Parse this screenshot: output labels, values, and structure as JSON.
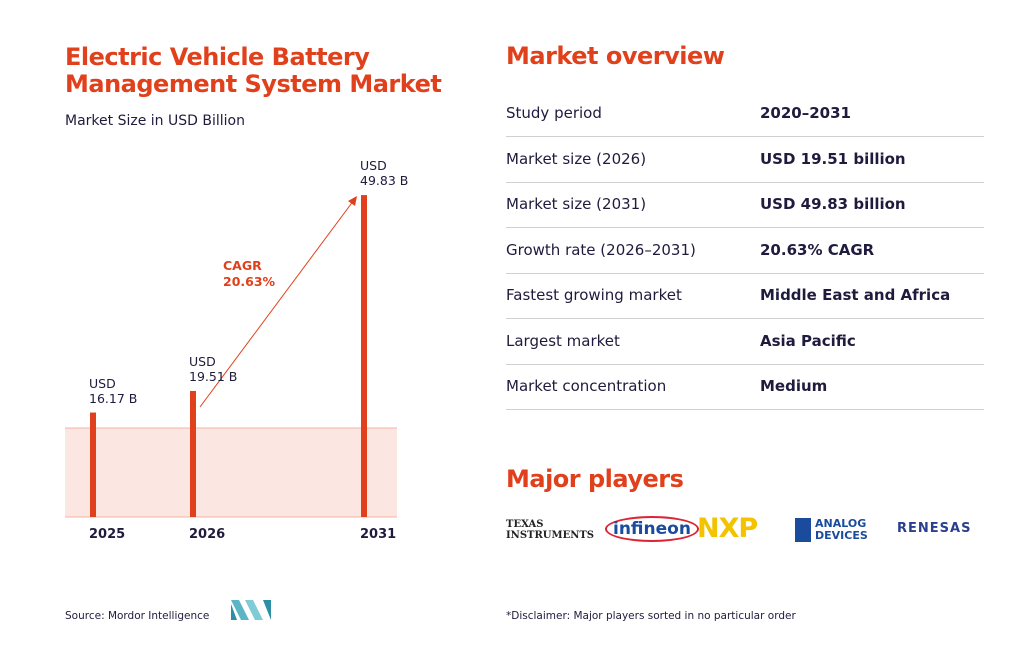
{
  "chart_data": {
    "type": "bar",
    "title": "Electric Vehicle Battery\nManagement System Market",
    "subtitle": "Market Size in USD Billion",
    "categories": [
      "2025",
      "2026",
      "2031"
    ],
    "values": [
      16.17,
      19.51,
      49.83
    ],
    "value_labels": [
      "USD\n16.17 B",
      "USD\n19.51 B",
      "USD\n49.83 B"
    ],
    "color": "#e0401b",
    "annotation": "CAGR\n20.63%",
    "source": "Source: Mordor Intelligence"
  },
  "overview": {
    "title": "Market overview",
    "rows": [
      [
        "Study period",
        "2020–2031"
      ],
      [
        "Market size (2026)",
        "USD 19.51 billion"
      ],
      [
        "Market size (2031)",
        "USD 49.83 billion"
      ],
      [
        "Growth rate (2026–2031)",
        "20.63% CAGR"
      ],
      [
        "Fastest growing market",
        "Middle East and Africa"
      ],
      [
        "Largest market",
        "Asia Pacific"
      ],
      [
        "Market concentration",
        "Medium"
      ]
    ]
  },
  "players": {
    "title": "Major players",
    "logos": [
      "TEXAS\nINSTRUMENTS",
      "infineon",
      "NXP",
      "ANALOG\nDEVICES",
      "RENESAS"
    ],
    "disclaimer": "*Disclaimer: Major players sorted in no particular order"
  }
}
